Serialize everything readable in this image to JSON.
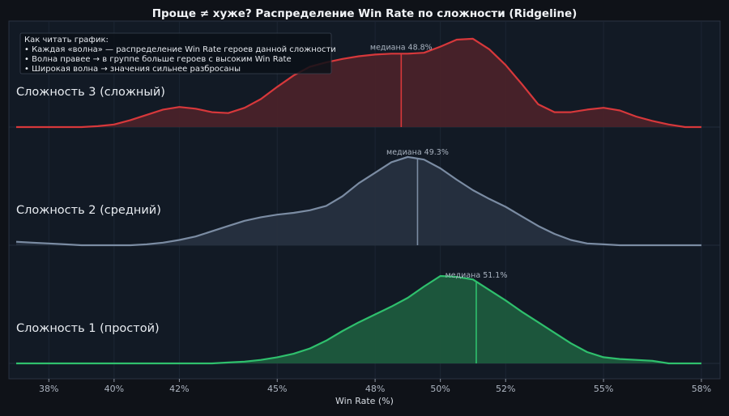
{
  "chart_data": {
    "type": "area",
    "title": "Проще ≠ хуже? Распределение Win Rate по сложности (Ridgeline)",
    "xlabel": "Win Rate (%)",
    "xlim": [
      37.0,
      58.3
    ],
    "x_ticks": [
      38,
      40,
      42,
      45,
      48,
      50,
      52,
      55,
      58
    ],
    "x_tick_labels": [
      "38%",
      "40%",
      "42%",
      "45%",
      "48%",
      "50%",
      "52%",
      "55%",
      "58%"
    ],
    "grid": true,
    "legend": {
      "placement": "top-left",
      "heading": "Как читать график:",
      "lines": [
        "• Каждая «волна» — распределение Win Rate героев данной сложности",
        "• Волна правее → в группе больше героев с высоким Win Rate",
        "• Широкая волна → значения сильнее разбросаны"
      ]
    },
    "series": [
      {
        "name": "Сложность 3 (сложный)",
        "color": "#d7383b",
        "fill": "#4a2229",
        "median": 48.8,
        "median_label": "медиана 48.8%",
        "x": [
          37.0,
          37.5,
          38.0,
          38.5,
          39.0,
          39.5,
          40.0,
          40.5,
          41.0,
          41.5,
          42.0,
          42.5,
          43.0,
          43.5,
          44.0,
          44.5,
          45.0,
          45.5,
          46.0,
          46.5,
          47.0,
          47.5,
          48.0,
          48.5,
          49.0,
          49.5,
          50.0,
          50.5,
          51.0,
          51.5,
          52.0,
          52.5,
          53.0,
          53.5,
          54.0,
          54.5,
          55.0,
          55.5,
          56.0,
          56.5,
          57.0,
          57.5,
          58.0
        ],
        "y": [
          0.0,
          0.0,
          0.0,
          0.0,
          0.0,
          0.01,
          0.03,
          0.08,
          0.14,
          0.2,
          0.23,
          0.21,
          0.17,
          0.16,
          0.22,
          0.32,
          0.46,
          0.59,
          0.69,
          0.74,
          0.78,
          0.81,
          0.83,
          0.84,
          0.84,
          0.85,
          0.92,
          1.0,
          1.01,
          0.89,
          0.71,
          0.49,
          0.26,
          0.17,
          0.17,
          0.2,
          0.22,
          0.19,
          0.12,
          0.07,
          0.03,
          0.0,
          0.0
        ]
      },
      {
        "name": "Сложность 2 (средний)",
        "color": "#7b8ca3",
        "fill": "#27303f",
        "median": 49.3,
        "median_label": "медиана 49.3%",
        "x": [
          37.0,
          37.5,
          38.0,
          38.5,
          39.0,
          39.5,
          40.0,
          40.5,
          41.0,
          41.5,
          42.0,
          42.5,
          43.0,
          43.5,
          44.0,
          44.5,
          45.0,
          45.5,
          46.0,
          46.5,
          47.0,
          47.5,
          48.0,
          48.5,
          49.0,
          49.5,
          50.0,
          50.5,
          51.0,
          51.5,
          52.0,
          52.5,
          53.0,
          53.5,
          54.0,
          54.5,
          55.0,
          55.5,
          56.0,
          56.5,
          57.0,
          57.5,
          58.0
        ],
        "y": [
          0.04,
          0.03,
          0.02,
          0.01,
          0.0,
          0.0,
          0.0,
          0.0,
          0.01,
          0.03,
          0.06,
          0.1,
          0.16,
          0.22,
          0.28,
          0.32,
          0.35,
          0.37,
          0.4,
          0.45,
          0.56,
          0.71,
          0.83,
          0.95,
          1.01,
          0.98,
          0.88,
          0.75,
          0.63,
          0.53,
          0.44,
          0.33,
          0.22,
          0.13,
          0.06,
          0.02,
          0.01,
          0.0,
          0.0,
          0.0,
          0.0,
          0.0,
          0.0
        ]
      },
      {
        "name": "Сложность 1 (простой)",
        "color": "#2fc06d",
        "fill": "#1d5a3d",
        "median": 51.1,
        "median_label": "медиана 51.1%",
        "x": [
          37.0,
          37.5,
          38.0,
          38.5,
          39.0,
          39.5,
          40.0,
          40.5,
          41.0,
          41.5,
          42.0,
          42.5,
          43.0,
          43.5,
          44.0,
          44.5,
          45.0,
          45.5,
          46.0,
          46.5,
          47.0,
          47.5,
          48.0,
          48.5,
          49.0,
          49.5,
          50.0,
          50.5,
          51.0,
          51.5,
          52.0,
          52.5,
          53.0,
          53.5,
          54.0,
          54.5,
          55.0,
          55.5,
          56.0,
          56.5,
          57.0,
          57.5,
          58.0
        ],
        "y": [
          0.0,
          0.0,
          0.0,
          0.0,
          0.0,
          0.0,
          0.0,
          0.0,
          0.0,
          0.0,
          0.0,
          0.0,
          0.0,
          0.01,
          0.02,
          0.04,
          0.07,
          0.11,
          0.17,
          0.26,
          0.37,
          0.47,
          0.56,
          0.65,
          0.75,
          0.88,
          1.0,
          0.99,
          0.96,
          0.84,
          0.72,
          0.59,
          0.47,
          0.35,
          0.23,
          0.13,
          0.07,
          0.05,
          0.04,
          0.03,
          0.0,
          0.0,
          0.0
        ]
      }
    ]
  }
}
